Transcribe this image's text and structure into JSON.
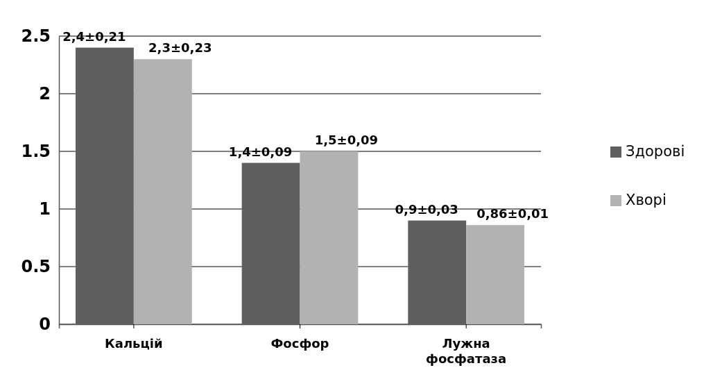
{
  "chart_data": {
    "type": "bar",
    "categories": [
      "Кальцій",
      "Фосфор",
      "Лужна фосфатаза"
    ],
    "series": [
      {
        "name": "Здорові",
        "color": "#5f5f5f",
        "values": [
          2.4,
          1.4,
          0.9
        ],
        "value_labels": [
          "2,4±0,21",
          "1,4±0,09",
          "0,9±0,03"
        ]
      },
      {
        "name": "Хворі",
        "color": "#b2b2b2",
        "values": [
          2.3,
          1.5,
          0.86
        ],
        "value_labels": [
          "2,3±0,23",
          "1,5±0,09",
          "0,86±0,01"
        ]
      }
    ],
    "ylim": [
      0,
      2.5
    ],
    "yticks": [
      0,
      0.5,
      1,
      1.5,
      2,
      2.5
    ],
    "grid": "y",
    "legend": "right"
  }
}
